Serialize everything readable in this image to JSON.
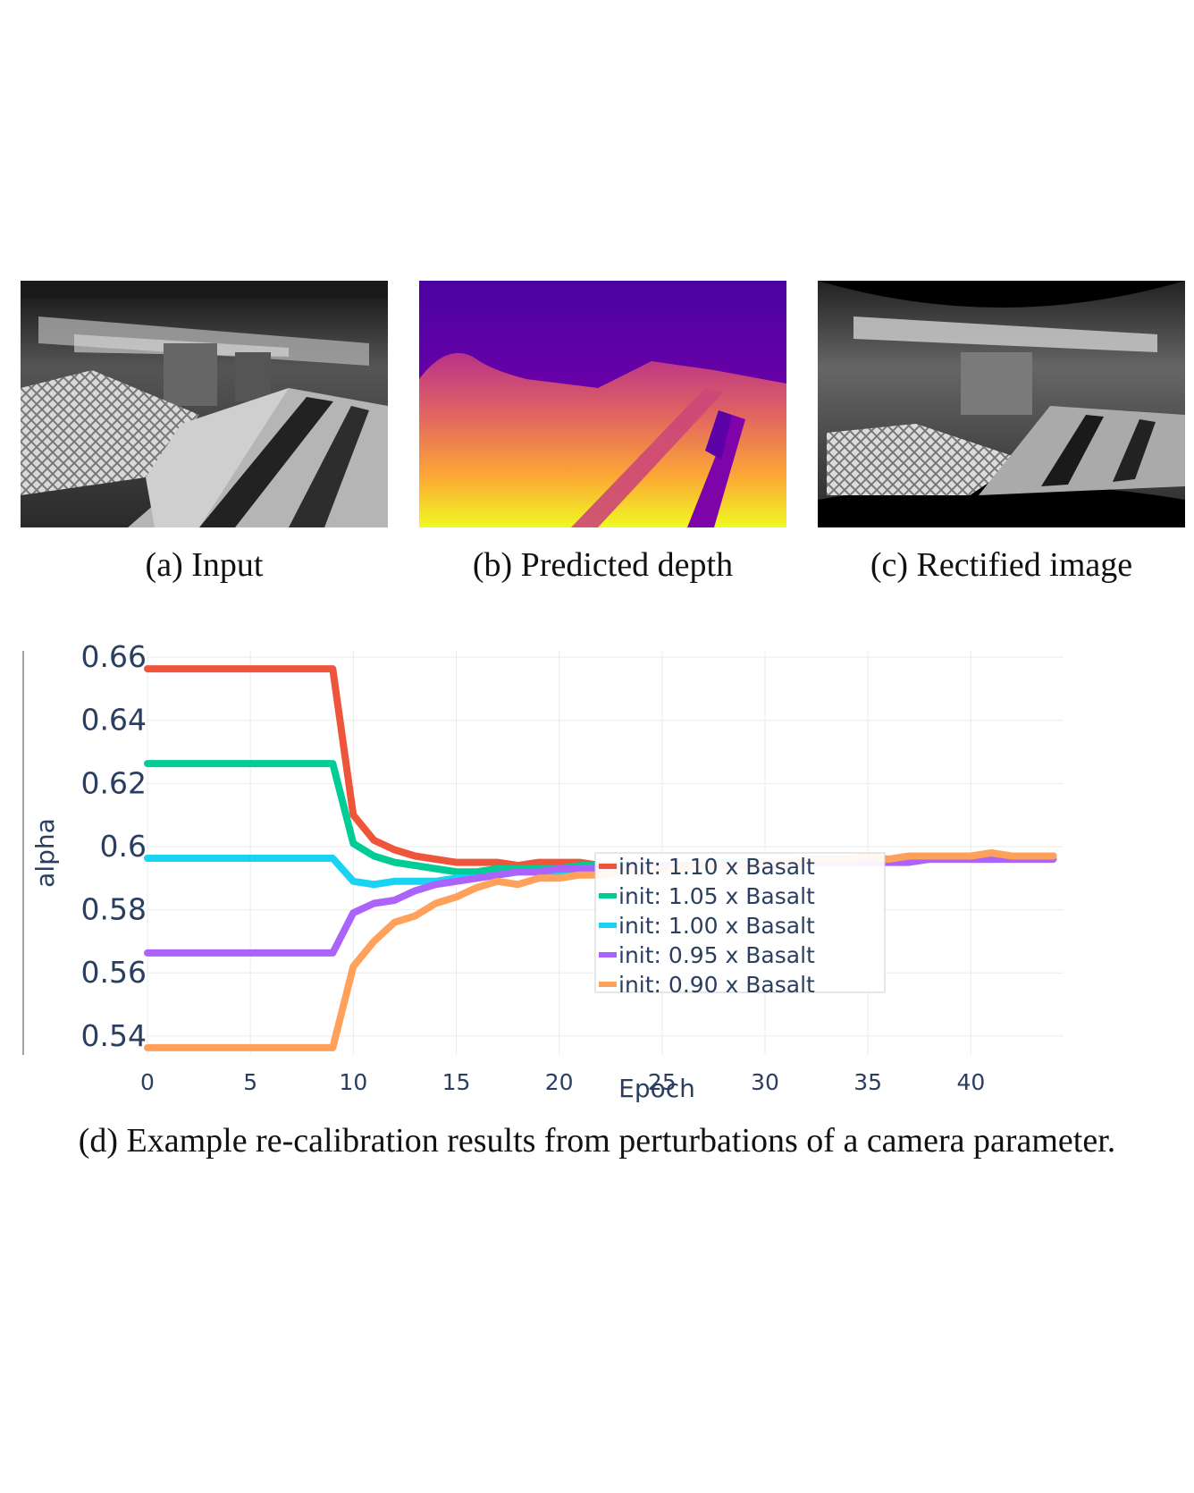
{
  "panels": [
    {
      "caption": "(a) Input",
      "kind": "grayscale fisheye input image"
    },
    {
      "caption": "(b) Predicted depth",
      "kind": "depth map (plasma colormap)"
    },
    {
      "caption": "(c) Rectified image",
      "kind": "rectified grayscale image"
    }
  ],
  "figure_caption": "(d) Example re-calibration results from perturbations of a camera parameter.",
  "colors": {
    "grid": "#ebebeb",
    "axis_text": "#2a3f5f",
    "series": [
      "#ef553b",
      "#00cc96",
      "#19d3f3",
      "#ab63fa",
      "#ffa15a"
    ]
  },
  "chart_data": {
    "type": "line",
    "title": "",
    "xlabel": "Epoch",
    "ylabel": "alpha",
    "xlim": [
      0,
      44.5
    ],
    "ylim": [
      0.534,
      0.662
    ],
    "xticks": [
      "0",
      "5",
      "10",
      "15",
      "20",
      "25",
      "30",
      "35",
      "40"
    ],
    "xtick_values": [
      0,
      5,
      10,
      15,
      20,
      25,
      30,
      35,
      40
    ],
    "yticks": [
      "0.66",
      "0.64",
      "0.62",
      "0.6",
      "0.58",
      "0.56",
      "0.54"
    ],
    "ytick_values": [
      0.66,
      0.64,
      0.62,
      0.6,
      0.58,
      0.56,
      0.54
    ],
    "grid": true,
    "legend_position": "bottom-center",
    "series": [
      {
        "name": "init: 1.10 x Basalt",
        "color": "#ef553b",
        "x": [
          0,
          9,
          10,
          11,
          12,
          13,
          14,
          15,
          16,
          17,
          18,
          19,
          20,
          21,
          22,
          23,
          24,
          25,
          26,
          27,
          28,
          29,
          30,
          31,
          32,
          33,
          34,
          35,
          36,
          37,
          38,
          39,
          40,
          41,
          42,
          43,
          44
        ],
        "y": [
          0.6563,
          0.6563,
          0.61,
          0.602,
          0.599,
          0.597,
          0.596,
          0.595,
          0.595,
          0.595,
          0.594,
          0.595,
          0.595,
          0.595,
          0.594,
          0.594,
          0.594,
          0.594,
          0.594,
          0.594,
          0.594,
          0.595,
          0.595,
          0.595,
          0.595,
          0.595,
          0.596,
          0.596,
          0.596,
          0.596,
          0.597,
          0.597,
          0.597,
          0.597,
          0.597,
          0.597,
          0.597
        ]
      },
      {
        "name": "init: 1.05 x Basalt",
        "color": "#00cc96",
        "x": [
          0,
          9,
          10,
          11,
          12,
          13,
          14,
          15,
          16,
          17,
          18,
          19,
          20,
          21,
          22,
          23,
          24,
          25,
          26,
          27,
          28,
          29,
          30,
          31,
          32,
          33,
          34,
          35,
          36,
          37,
          38,
          39,
          40,
          41,
          42,
          43,
          44
        ],
        "y": [
          0.6263,
          0.6263,
          0.601,
          0.597,
          0.595,
          0.594,
          0.593,
          0.592,
          0.592,
          0.593,
          0.593,
          0.593,
          0.593,
          0.594,
          0.594,
          0.594,
          0.594,
          0.594,
          0.594,
          0.594,
          0.595,
          0.595,
          0.595,
          0.595,
          0.595,
          0.595,
          0.596,
          0.596,
          0.596,
          0.596,
          0.596,
          0.597,
          0.596,
          0.596,
          0.597,
          0.597,
          0.597
        ]
      },
      {
        "name": "init: 1.00 x Basalt",
        "color": "#19d3f3",
        "x": [
          0,
          9,
          10,
          11,
          12,
          13,
          14,
          15,
          16,
          17,
          18,
          19,
          20,
          21,
          22,
          23,
          24,
          25,
          26,
          27,
          28,
          29,
          30,
          31,
          32,
          33,
          34,
          35,
          36,
          37,
          38,
          39,
          40,
          41,
          42,
          43,
          44
        ],
        "y": [
          0.5963,
          0.5963,
          0.589,
          0.588,
          0.589,
          0.589,
          0.589,
          0.59,
          0.59,
          0.591,
          0.592,
          0.592,
          0.592,
          0.593,
          0.593,
          0.593,
          0.594,
          0.594,
          0.594,
          0.594,
          0.595,
          0.595,
          0.595,
          0.595,
          0.595,
          0.596,
          0.596,
          0.596,
          0.596,
          0.596,
          0.597,
          0.597,
          0.597,
          0.597,
          0.597,
          0.597,
          0.597
        ]
      },
      {
        "name": "init: 0.95 x Basalt",
        "color": "#ab63fa",
        "x": [
          0,
          9,
          10,
          11,
          12,
          13,
          14,
          15,
          16,
          17,
          18,
          19,
          20,
          21,
          22,
          23,
          24,
          25,
          26,
          27,
          28,
          29,
          30,
          31,
          32,
          33,
          34,
          35,
          36,
          37,
          38,
          39,
          40,
          41,
          42,
          43,
          44
        ],
        "y": [
          0.5663,
          0.5663,
          0.579,
          0.582,
          0.583,
          0.586,
          0.588,
          0.589,
          0.59,
          0.591,
          0.592,
          0.592,
          0.593,
          0.593,
          0.593,
          0.593,
          0.594,
          0.594,
          0.594,
          0.594,
          0.594,
          0.594,
          0.594,
          0.594,
          0.595,
          0.595,
          0.595,
          0.595,
          0.595,
          0.595,
          0.596,
          0.596,
          0.596,
          0.596,
          0.596,
          0.596,
          0.596
        ]
      },
      {
        "name": "init: 0.90 x Basalt",
        "color": "#ffa15a",
        "x": [
          0,
          9,
          10,
          11,
          12,
          13,
          14,
          15,
          16,
          17,
          18,
          19,
          20,
          21,
          22,
          23,
          24,
          25,
          26,
          27,
          28,
          29,
          30,
          31,
          32,
          33,
          34,
          35,
          36,
          37,
          38,
          39,
          40,
          41,
          42,
          43,
          44
        ],
        "y": [
          0.5363,
          0.5363,
          0.562,
          0.57,
          0.576,
          0.578,
          0.582,
          0.584,
          0.587,
          0.589,
          0.588,
          0.59,
          0.59,
          0.591,
          0.591,
          0.592,
          0.592,
          0.593,
          0.593,
          0.594,
          0.594,
          0.594,
          0.595,
          0.595,
          0.596,
          0.596,
          0.596,
          0.597,
          0.596,
          0.597,
          0.597,
          0.597,
          0.597,
          0.598,
          0.597,
          0.597,
          0.597
        ]
      }
    ]
  }
}
